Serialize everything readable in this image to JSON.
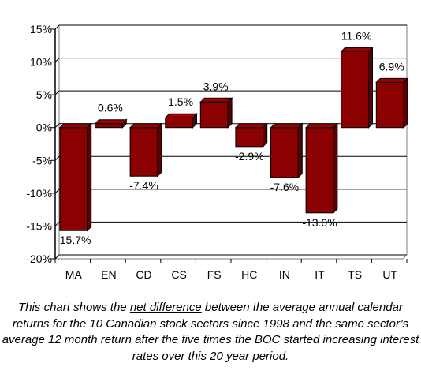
{
  "chart_data": {
    "type": "bar",
    "categories": [
      "MA",
      "EN",
      "CD",
      "CS",
      "FS",
      "HC",
      "IN",
      "IT",
      "TS",
      "UT"
    ],
    "values": [
      -15.7,
      0.6,
      -7.4,
      1.5,
      3.9,
      -2.9,
      -7.6,
      -13.0,
      11.6,
      6.9
    ],
    "value_labels": [
      "-15.7%",
      "0.6%",
      "-7.4%",
      "1.5%",
      "3.9%",
      "-2.9%",
      "-7.6%",
      "-13.0%",
      "11.6%",
      "6.9%"
    ],
    "ylim": [
      -20,
      15
    ],
    "yticks": [
      15,
      10,
      5,
      0,
      -5,
      -10,
      -15,
      -20
    ],
    "ytick_labels": [
      "15%",
      "10%",
      "5%",
      "0%",
      "-5%",
      "-10%",
      "-15%",
      "-20%"
    ],
    "grid": "horizontal",
    "bar_color": "#8b0000"
  },
  "caption": {
    "before": "This chart shows the ",
    "underlined": "net difference",
    "after": " between the average annual calendar returns for the 10 Canadian stock sectors since 1998 and the same sector’s average 12 month return after the five times the BOC started increasing interest rates over this 20 year period."
  }
}
